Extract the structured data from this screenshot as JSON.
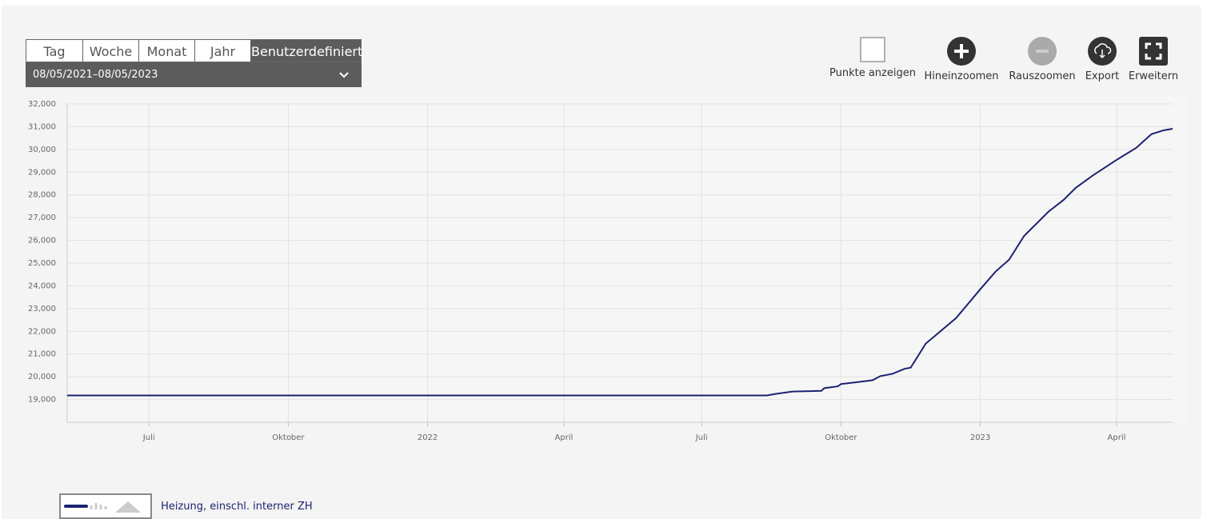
{
  "toolbar": {
    "tabs": [
      "Tag",
      "Woche",
      "Monat",
      "Jahr",
      "Benutzerdefiniert"
    ],
    "date_range": "08/05/2021–08/05/2023",
    "buttons": [
      "Punkte anzeigen",
      "Hineinzoomen",
      "Rauszoomen",
      "Export",
      "Erweitern"
    ]
  },
  "chart_data": {
    "type": "line",
    "x": [
      "2021-05-08",
      "2022-08-13",
      "2022-08-19",
      "2022-08-30",
      "2022-09-18",
      "2022-09-20",
      "2022-09-29",
      "2022-10-01",
      "2022-10-11",
      "2022-10-16",
      "2022-10-22",
      "2022-10-27",
      "2022-11-04",
      "2022-11-12",
      "2022-11-16",
      "2022-11-26",
      "2022-12-16",
      "2023-01-01",
      "2023-01-11",
      "2023-01-20",
      "2023-01-30",
      "2023-02-15",
      "2023-02-25",
      "2023-03-05",
      "2023-03-16",
      "2023-04-01",
      "2023-04-14",
      "2023-04-24",
      "2023-05-02",
      "2023-05-08"
    ],
    "series": [
      {
        "name": "Heizung, einschl. interner ZH",
        "color": "#1c2270",
        "values": [
          19180,
          19180,
          19250,
          19350,
          19380,
          19500,
          19580,
          19680,
          19760,
          19800,
          19850,
          20030,
          20130,
          20350,
          20400,
          21460,
          22580,
          23850,
          24620,
          25150,
          26200,
          27260,
          27780,
          28310,
          28840,
          29540,
          30070,
          30670,
          30840,
          30910
        ]
      }
    ],
    "xlim": [
      "2021-05-08",
      "2023-05-08"
    ],
    "xticks": [
      {
        "value": "2021-07-01",
        "label": "Juli"
      },
      {
        "value": "2021-10-01",
        "label": "Oktober"
      },
      {
        "value": "2022-01-01",
        "label": "2022"
      },
      {
        "value": "2022-04-01",
        "label": "April"
      },
      {
        "value": "2022-07-01",
        "label": "Juli"
      },
      {
        "value": "2022-10-01",
        "label": "Oktober"
      },
      {
        "value": "2023-01-01",
        "label": "2023"
      },
      {
        "value": "2023-04-01",
        "label": "April"
      }
    ],
    "ylim": [
      18000,
      32000
    ],
    "yticks": [
      {
        "value": 19000,
        "label": "19,000"
      },
      {
        "value": 20000,
        "label": "20,000"
      },
      {
        "value": 21000,
        "label": "21,000"
      },
      {
        "value": 22000,
        "label": "22,000"
      },
      {
        "value": 23000,
        "label": "23,000"
      },
      {
        "value": 24000,
        "label": "24,000"
      },
      {
        "value": 25000,
        "label": "25,000"
      },
      {
        "value": 26000,
        "label": "26,000"
      },
      {
        "value": 27000,
        "label": "27,000"
      },
      {
        "value": 28000,
        "label": "28,000"
      },
      {
        "value": 29000,
        "label": "29,000"
      },
      {
        "value": 30000,
        "label": "30,000"
      },
      {
        "value": 31000,
        "label": "31,000"
      },
      {
        "value": 32000,
        "label": "32,000"
      }
    ],
    "grid": true
  }
}
